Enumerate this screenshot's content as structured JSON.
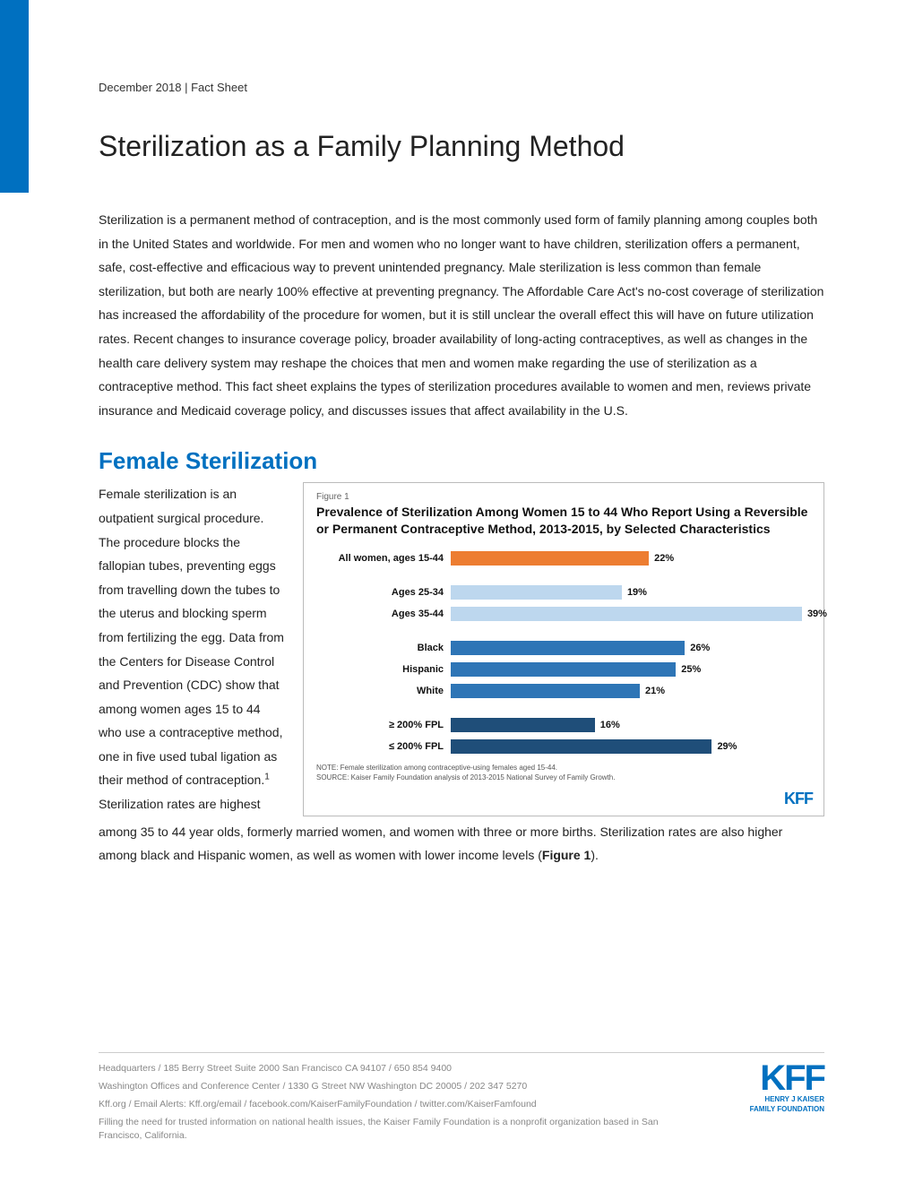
{
  "meta": "December 2018 | Fact Sheet",
  "title": "Sterilization as a Family Planning Method",
  "intro": "Sterilization is a permanent method of contraception, and is the most commonly used form of family planning among couples both in the United States and worldwide. For men and women who no longer want to have children, sterilization offers a permanent, safe, cost-effective and efficacious way to prevent unintended pregnancy. Male sterilization is less common than female sterilization, but both are nearly 100% effective at preventing pregnancy. The Affordable Care Act's no-cost coverage of sterilization has increased the affordability of the procedure for women, but it is still unclear the overall effect this will have on future utilization rates. Recent changes to insurance coverage policy, broader availability of long-acting contraceptives, as well as changes in the health care delivery system may reshape the choices that men and women make regarding the use of sterilization as a contraceptive method. This fact sheet explains the types of sterilization procedures available to women and men, reviews private insurance and Medicaid coverage policy, and discusses issues that affect availability in the U.S.",
  "section_heading": "Female Sterilization",
  "left_para_1": "Female sterilization is an outpatient surgical procedure. The procedure blocks the fallopian tubes, preventing eggs from travelling down the tubes to the uterus and blocking sperm from fertilizing the egg. Data from the Centers for Disease Control and Prevention (CDC) show that among women ages 15 to 44 who use a contraceptive method, one in five used tubal ligation as their method of contraception.",
  "left_para_2": "Sterilization rates are highest",
  "cont_para": "among 35 to 44 year olds, formerly married women, and women with three or more births. Sterilization rates are also higher among black and Hispanic women, as well as women with lower income levels (",
  "cont_bold": "Figure 1",
  "cont_end": ").",
  "figure": {
    "label": "Figure 1",
    "title": "Prevalence of Sterilization Among Women 15 to 44 Who Report Using a Reversible or Permanent Contraceptive Method, 2013-2015, by Selected Characteristics",
    "max_value": 40,
    "groups": [
      [
        {
          "label": "All women, ages 15-44",
          "value": 22,
          "pct": "22%",
          "color": "#ed7d31",
          "bold": true
        }
      ],
      [
        {
          "label": "Ages 25-34",
          "value": 19,
          "pct": "19%",
          "color": "#bdd7ee",
          "bold": true
        },
        {
          "label": "Ages 35-44",
          "value": 39,
          "pct": "39%",
          "color": "#bdd7ee",
          "bold": true
        }
      ],
      [
        {
          "label": "Black",
          "value": 26,
          "pct": "26%",
          "color": "#2e75b6",
          "bold": true
        },
        {
          "label": "Hispanic",
          "value": 25,
          "pct": "25%",
          "color": "#2e75b6",
          "bold": true
        },
        {
          "label": "White",
          "value": 21,
          "pct": "21%",
          "color": "#2e75b6",
          "bold": true
        }
      ],
      [
        {
          "label": "≥ 200% FPL",
          "value": 16,
          "pct": "16%",
          "color": "#1f4e79",
          "bold": true
        },
        {
          "label": "≤ 200% FPL",
          "value": 29,
          "pct": "29%",
          "color": "#1f4e79",
          "bold": true
        }
      ]
    ],
    "note1": "NOTE: Female sterilization among contraceptive-using females aged 15-44.",
    "note2": "SOURCE: Kaiser Family Foundation analysis of 2013-2015 National Survey of Family Growth.",
    "logo": "KFF"
  },
  "footer": {
    "line1": "Headquarters / 185 Berry Street Suite 2000 San Francisco CA 94107 / 650 854 9400",
    "line2": "Washington Offices and Conference Center / 1330 G Street NW Washington DC 20005 / 202 347 5270",
    "line3": "Kff.org / Email Alerts: Kff.org/email / facebook.com/KaiserFamilyFoundation / twitter.com/KaiserFamfound",
    "line4": "Filling the need for trusted information on national health issues, the Kaiser Family Foundation is a nonprofit organization based in San Francisco, California.",
    "logo_main": "KFF",
    "logo_sub1": "HENRY J KAISER",
    "logo_sub2": "FAMILY FOUNDATION"
  }
}
